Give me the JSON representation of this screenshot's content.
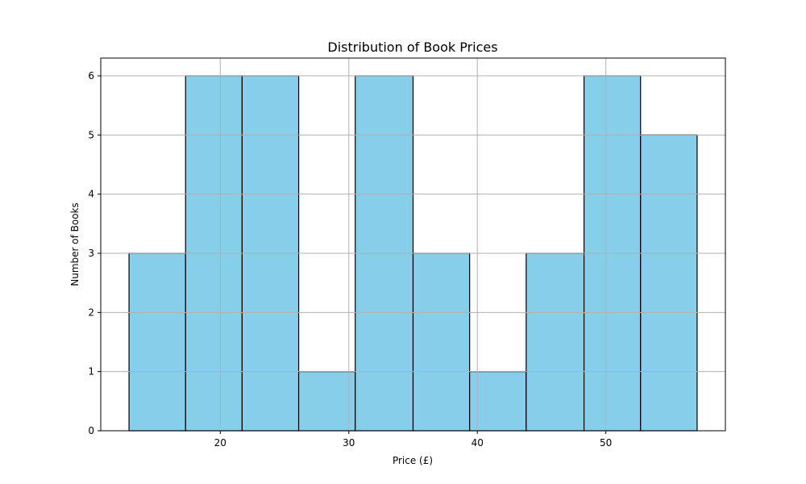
{
  "chart_data": {
    "type": "bar",
    "title": "Distribution of Book Prices",
    "xlabel": "Price (£)",
    "ylabel": "Number of Books",
    "bins": [
      {
        "start": 12.9,
        "end": 17.3,
        "count": 3
      },
      {
        "start": 17.3,
        "end": 21.7,
        "count": 6
      },
      {
        "start": 21.7,
        "end": 26.1,
        "count": 6
      },
      {
        "start": 26.1,
        "end": 30.5,
        "count": 1
      },
      {
        "start": 30.5,
        "end": 35.0,
        "count": 6
      },
      {
        "start": 35.0,
        "end": 39.4,
        "count": 3
      },
      {
        "start": 39.4,
        "end": 43.8,
        "count": 1
      },
      {
        "start": 43.8,
        "end": 48.3,
        "count": 3
      },
      {
        "start": 48.3,
        "end": 52.7,
        "count": 6
      },
      {
        "start": 52.7,
        "end": 57.1,
        "count": 5
      }
    ],
    "xlim": [
      10.7,
      59.3
    ],
    "ylim": [
      0,
      6.3
    ],
    "xticks": [
      20,
      30,
      40,
      50
    ],
    "yticks": [
      0,
      1,
      2,
      3,
      4,
      5,
      6
    ],
    "grid": true,
    "bar_color": "#87ceeb",
    "edge_color": "#000000"
  }
}
